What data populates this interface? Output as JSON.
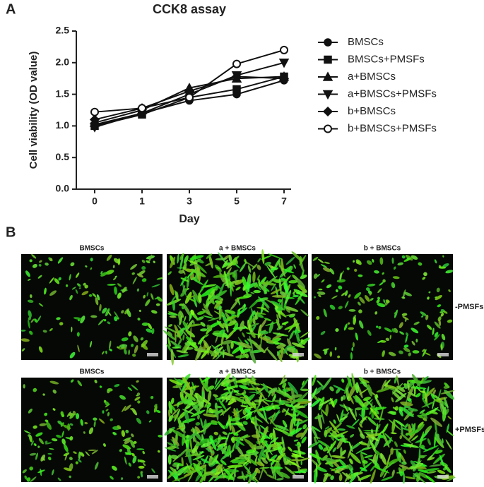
{
  "panel_a": "A",
  "panel_b": "B",
  "chart_data": {
    "type": "line",
    "title": "CCK8 assay",
    "x_label": "Day",
    "y_label": "Cell viability (OD value)",
    "categories": [
      "0",
      "1",
      "3",
      "5",
      "7"
    ],
    "ylim": [
      0,
      2.5
    ],
    "yticks": [
      {
        "value": 0,
        "label": "0.0"
      },
      {
        "value": 0.5,
        "label": "0.5"
      },
      {
        "value": 1,
        "label": "1.0"
      },
      {
        "value": 1.5,
        "label": "1.5"
      },
      {
        "value": 2,
        "label": "2.0"
      },
      {
        "value": 2.5,
        "label": "2.5"
      }
    ],
    "series": [
      {
        "name": "BMSCs",
        "color": "#111111",
        "marker": "circle",
        "values": [
          1.02,
          1.2,
          1.4,
          1.5,
          1.72
        ]
      },
      {
        "name": "BMSCs+PMSFs",
        "color": "#111111",
        "marker": "square",
        "values": [
          1.0,
          1.18,
          1.45,
          1.58,
          1.78
        ]
      },
      {
        "name": "a+BMSCs",
        "color": "#111111",
        "marker": "triangle",
        "values": [
          1.05,
          1.25,
          1.6,
          1.75,
          1.78
        ]
      },
      {
        "name": "a+BMSCs+PMSFs",
        "color": "#111111",
        "marker": "triangle-down",
        "values": [
          0.98,
          1.2,
          1.5,
          1.8,
          2.0
        ]
      },
      {
        "name": "b+BMSCs",
        "color": "#111111",
        "marker": "diamond",
        "values": [
          1.1,
          1.28,
          1.55,
          1.78,
          1.75
        ]
      },
      {
        "name": "b+BMSCs+PMSFs",
        "color": "#111111",
        "marker": "open-circle",
        "values": [
          1.22,
          1.28,
          1.45,
          1.98,
          2.2
        ]
      }
    ]
  },
  "images": {
    "column_titles": [
      [
        "BMSCs",
        "a + BMSCs",
        "b + BMSCs"
      ],
      [
        "BMSCs",
        "a + BMSCs",
        "b + BMSCs"
      ]
    ],
    "row_labels": [
      "-PMSFs",
      "+PMSFs"
    ]
  }
}
